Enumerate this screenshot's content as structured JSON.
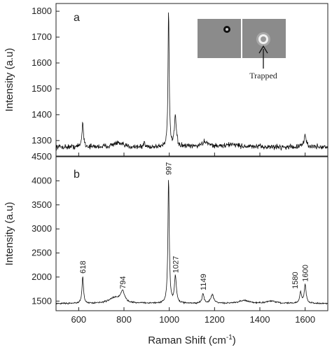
{
  "chart_data": {
    "type": "line",
    "xlabel_main": "Raman Shift (cm",
    "xlabel_sup": "-1",
    "xlabel_close": ")",
    "xlim": [
      500,
      1700
    ],
    "xticks": [
      600,
      800,
      1000,
      1200,
      1400,
      1600
    ],
    "panels": [
      {
        "letter": "a",
        "ylabel": "Intensity (a.u)",
        "ylim": [
          1240,
          1830
        ],
        "yticks": [
          1300,
          1400,
          1500,
          1600,
          1700,
          1800
        ],
        "baseline": 1275,
        "noise": 10,
        "peaks": [
          {
            "x": 618,
            "height": 95,
            "width": 4
          },
          {
            "x": 770,
            "height": 15,
            "width": 25
          },
          {
            "x": 890,
            "height": 25,
            "width": 2
          },
          {
            "x": 997,
            "height": 535,
            "width": 3
          },
          {
            "x": 1027,
            "height": 115,
            "width": 5
          },
          {
            "x": 1160,
            "height": 20,
            "width": 20
          },
          {
            "x": 1280,
            "height": 10,
            "width": 30
          },
          {
            "x": 1600,
            "height": 45,
            "width": 6
          }
        ],
        "inset": {
          "annotation": "Trapped"
        }
      },
      {
        "letter": "b",
        "ylabel": "Intensity (a.u)",
        "ylim": [
          1300,
          4500
        ],
        "yticks": [
          1500,
          2000,
          2500,
          3000,
          3500,
          4000,
          4500
        ],
        "baseline": 1450,
        "noise": 15,
        "peaks": [
          {
            "x": 618,
            "height": 550,
            "width": 4,
            "label": "618"
          },
          {
            "x": 760,
            "height": 120,
            "width": 30
          },
          {
            "x": 794,
            "height": 230,
            "width": 10,
            "label": "794"
          },
          {
            "x": 997,
            "height": 2600,
            "width": 3.5,
            "label": "997"
          },
          {
            "x": 1027,
            "height": 560,
            "width": 5,
            "label": "1027"
          },
          {
            "x": 1149,
            "height": 200,
            "width": 5,
            "label": "1149"
          },
          {
            "x": 1190,
            "height": 180,
            "width": 8
          },
          {
            "x": 1330,
            "height": 60,
            "width": 25
          },
          {
            "x": 1450,
            "height": 50,
            "width": 25
          },
          {
            "x": 1580,
            "height": 230,
            "width": 5,
            "label": "1580"
          },
          {
            "x": 1600,
            "height": 380,
            "width": 5,
            "label": "1600"
          }
        ]
      }
    ]
  }
}
